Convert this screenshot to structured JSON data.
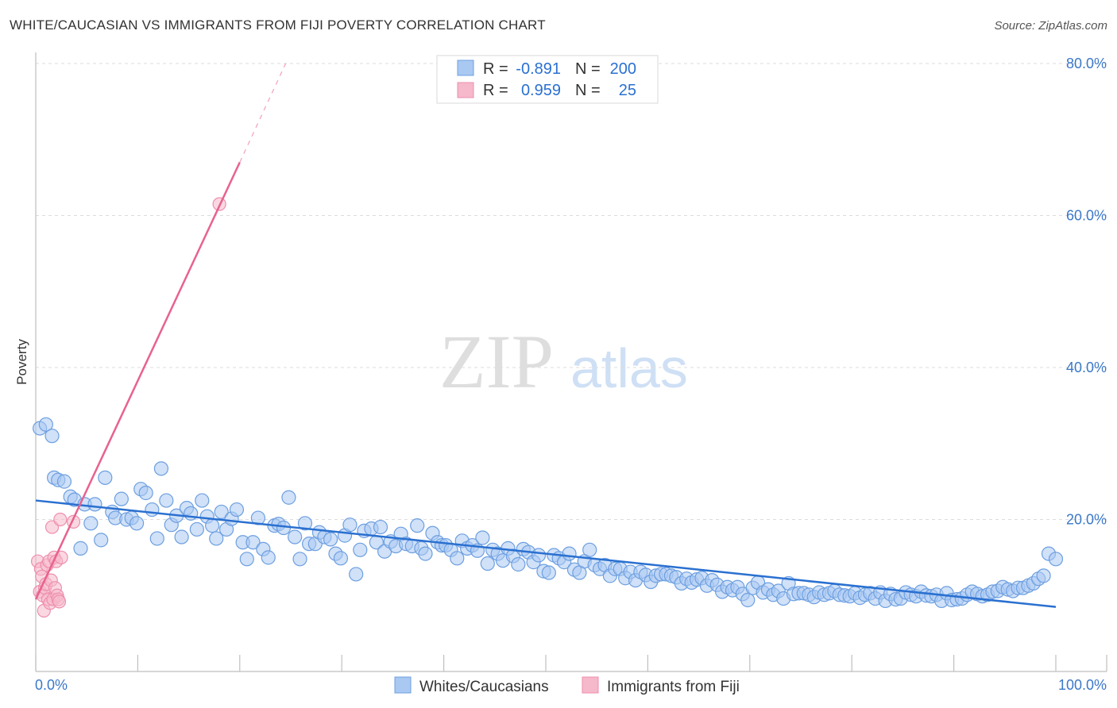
{
  "title": "WHITE/CAUCASIAN VS IMMIGRANTS FROM FIJI POVERTY CORRELATION CHART",
  "source": "Source: ZipAtlas.com",
  "watermark": {
    "zip": "ZIP",
    "atlas": "atlas"
  },
  "colors": {
    "blue_fill": "#a9c9f2",
    "blue_stroke": "#6d9fe0",
    "blue_line": "#2a70d0",
    "pink_fill": "#f6b8cb",
    "pink_stroke": "#ee8fad",
    "pink_line": "#e8628e",
    "axis_text": "#3a78c9",
    "grid": "#dcdcdc"
  },
  "stats_legend": [
    {
      "r_label": "R =",
      "r_value": "-0.891",
      "n_label": "N =",
      "n_value": "200"
    },
    {
      "r_label": "R =",
      "r_value": "0.959",
      "n_label": "N =",
      "n_value": "25"
    }
  ],
  "chart_data": {
    "type": "scatter",
    "xlabel": "",
    "ylabel": "Poverty",
    "xlim": [
      0,
      100
    ],
    "ylim": [
      0,
      80
    ],
    "x_tick_labels": [
      "0.0%",
      "100.0%"
    ],
    "y_ticks": [
      20,
      40,
      60,
      80
    ],
    "y_tick_labels": [
      "20.0%",
      "40.0%",
      "60.0%",
      "80.0%"
    ],
    "grid": true,
    "legend_position": "bottom",
    "series": [
      {
        "name": "Whites/Caucasians",
        "color": "#a9c9f2",
        "trend": {
          "x": [
            0,
            100
          ],
          "y": [
            22.5,
            8.5
          ]
        },
        "points": [
          [
            0.4,
            32
          ],
          [
            1.0,
            32.5
          ],
          [
            1.6,
            31
          ],
          [
            1.8,
            25.5
          ],
          [
            2.2,
            25.2
          ],
          [
            2.8,
            25
          ],
          [
            3.4,
            23
          ],
          [
            3.8,
            22.6
          ],
          [
            4.4,
            16.2
          ],
          [
            4.8,
            22
          ],
          [
            5.4,
            19.5
          ],
          [
            5.8,
            22
          ],
          [
            6.4,
            17.3
          ],
          [
            6.8,
            25.5
          ],
          [
            7.5,
            21
          ],
          [
            7.8,
            20.2
          ],
          [
            8.4,
            22.7
          ],
          [
            8.9,
            20
          ],
          [
            9.4,
            20.2
          ],
          [
            9.9,
            19.5
          ],
          [
            10.3,
            24
          ],
          [
            10.8,
            23.5
          ],
          [
            11.4,
            21.3
          ],
          [
            11.9,
            17.5
          ],
          [
            12.3,
            26.7
          ],
          [
            12.8,
            22.5
          ],
          [
            13.3,
            19.3
          ],
          [
            13.8,
            20.5
          ],
          [
            14.3,
            17.7
          ],
          [
            14.8,
            21.5
          ],
          [
            15.2,
            20.8
          ],
          [
            15.8,
            18.7
          ],
          [
            16.3,
            22.5
          ],
          [
            16.8,
            20.4
          ],
          [
            17.3,
            19.2
          ],
          [
            17.7,
            17.5
          ],
          [
            18.2,
            21
          ],
          [
            18.7,
            18.7
          ],
          [
            19.2,
            20.1
          ],
          [
            19.7,
            21.3
          ],
          [
            20.3,
            17
          ],
          [
            20.7,
            14.8
          ],
          [
            21.3,
            17
          ],
          [
            21.8,
            20.2
          ],
          [
            22.3,
            16.1
          ],
          [
            22.8,
            15
          ],
          [
            23.4,
            19.2
          ],
          [
            23.8,
            19.4
          ],
          [
            24.3,
            18.9
          ],
          [
            24.8,
            22.9
          ],
          [
            25.4,
            17.7
          ],
          [
            25.9,
            14.8
          ],
          [
            26.4,
            19.5
          ],
          [
            26.8,
            16.8
          ],
          [
            27.4,
            16.8
          ],
          [
            27.8,
            18.3
          ],
          [
            28.3,
            17.7
          ],
          [
            28.9,
            17.4
          ],
          [
            29.4,
            15.5
          ],
          [
            29.9,
            14.9
          ],
          [
            30.3,
            17.9
          ],
          [
            30.8,
            19.3
          ],
          [
            31.4,
            12.8
          ],
          [
            31.8,
            16
          ],
          [
            32.2,
            18.5
          ],
          [
            32.9,
            18.8
          ],
          [
            33.4,
            17
          ],
          [
            33.8,
            19
          ],
          [
            34.2,
            15.8
          ],
          [
            34.8,
            17.1
          ],
          [
            35.3,
            16.5
          ],
          [
            35.8,
            18.1
          ],
          [
            36.3,
            16.8
          ],
          [
            36.9,
            16.5
          ],
          [
            37.4,
            19.2
          ],
          [
            37.8,
            16.2
          ],
          [
            38.2,
            15.5
          ],
          [
            38.9,
            18.2
          ],
          [
            39.4,
            17
          ],
          [
            39.8,
            16.6
          ],
          [
            40.2,
            16.6
          ],
          [
            40.7,
            16
          ],
          [
            41.3,
            14.9
          ],
          [
            41.8,
            17.2
          ],
          [
            42.3,
            16.2
          ],
          [
            42.8,
            16.6
          ],
          [
            43.3,
            15.9
          ],
          [
            43.8,
            17.6
          ],
          [
            44.3,
            14.2
          ],
          [
            44.8,
            16
          ],
          [
            45.3,
            15.5
          ],
          [
            45.8,
            14.6
          ],
          [
            46.3,
            16.2
          ],
          [
            46.8,
            15.2
          ],
          [
            47.3,
            14.1
          ],
          [
            47.8,
            16.1
          ],
          [
            48.3,
            15.7
          ],
          [
            48.8,
            14.4
          ],
          [
            49.3,
            15.3
          ],
          [
            49.8,
            13.2
          ],
          [
            50.3,
            13
          ],
          [
            50.8,
            15.3
          ],
          [
            51.3,
            14.9
          ],
          [
            51.8,
            14.4
          ],
          [
            52.3,
            15.5
          ],
          [
            52.8,
            13.4
          ],
          [
            53.3,
            13
          ],
          [
            53.8,
            14.5
          ],
          [
            54.3,
            16
          ],
          [
            54.8,
            14
          ],
          [
            55.3,
            13.5
          ],
          [
            55.8,
            14
          ],
          [
            56.3,
            12.6
          ],
          [
            56.8,
            13.5
          ],
          [
            57.3,
            13.5
          ],
          [
            57.8,
            12.3
          ],
          [
            58.3,
            13.1
          ],
          [
            58.8,
            12
          ],
          [
            59.3,
            13.1
          ],
          [
            59.8,
            12.7
          ],
          [
            60.3,
            11.8
          ],
          [
            60.8,
            12.6
          ],
          [
            61.3,
            12.8
          ],
          [
            61.8,
            12.8
          ],
          [
            62.3,
            12.6
          ],
          [
            62.8,
            12.4
          ],
          [
            63.3,
            11.6
          ],
          [
            63.8,
            12.2
          ],
          [
            64.3,
            11.7
          ],
          [
            64.8,
            12.1
          ],
          [
            65.3,
            12.3
          ],
          [
            65.8,
            11.3
          ],
          [
            66.3,
            12
          ],
          [
            66.8,
            11.4
          ],
          [
            67.3,
            10.5
          ],
          [
            67.8,
            11.1
          ],
          [
            68.3,
            10.7
          ],
          [
            68.8,
            11.1
          ],
          [
            69.3,
            10.2
          ],
          [
            69.8,
            9.4
          ],
          [
            70.3,
            11
          ],
          [
            70.8,
            11.7
          ],
          [
            71.3,
            10.4
          ],
          [
            71.8,
            10.8
          ],
          [
            72.3,
            10.1
          ],
          [
            72.8,
            10.6
          ],
          [
            73.3,
            9.6
          ],
          [
            73.8,
            11.6
          ],
          [
            74.3,
            10.2
          ],
          [
            74.8,
            10.3
          ],
          [
            75.3,
            10.3
          ],
          [
            75.8,
            10.1
          ],
          [
            76.3,
            9.8
          ],
          [
            76.8,
            10.4
          ],
          [
            77.3,
            10.1
          ],
          [
            77.8,
            10.3
          ],
          [
            78.3,
            10.6
          ],
          [
            78.8,
            10.1
          ],
          [
            79.3,
            10
          ],
          [
            79.8,
            9.9
          ],
          [
            80.3,
            10.3
          ],
          [
            80.8,
            9.7
          ],
          [
            81.3,
            10.1
          ],
          [
            81.8,
            10.3
          ],
          [
            82.3,
            9.6
          ],
          [
            82.8,
            10.4
          ],
          [
            83.3,
            9.3
          ],
          [
            83.8,
            10.2
          ],
          [
            84.3,
            9.5
          ],
          [
            84.8,
            9.6
          ],
          [
            85.3,
            10.4
          ],
          [
            85.8,
            10.1
          ],
          [
            86.3,
            9.9
          ],
          [
            86.8,
            10.5
          ],
          [
            87.3,
            10
          ],
          [
            87.8,
            9.9
          ],
          [
            88.3,
            10.1
          ],
          [
            88.8,
            9.3
          ],
          [
            89.3,
            10.3
          ],
          [
            89.8,
            9.4
          ],
          [
            90.3,
            9.5
          ],
          [
            90.8,
            9.6
          ],
          [
            91.3,
            10.1
          ],
          [
            91.8,
            10.5
          ],
          [
            92.3,
            10.2
          ],
          [
            92.8,
            9.9
          ],
          [
            93.3,
            10.1
          ],
          [
            93.8,
            10.5
          ],
          [
            94.3,
            10.6
          ],
          [
            94.8,
            11.1
          ],
          [
            95.3,
            10.8
          ],
          [
            95.8,
            10.6
          ],
          [
            96.3,
            11
          ],
          [
            96.8,
            11
          ],
          [
            97.3,
            11.3
          ],
          [
            97.8,
            11.6
          ],
          [
            98.3,
            12.2
          ],
          [
            98.8,
            12.6
          ],
          [
            99.3,
            15.5
          ],
          [
            100.0,
            14.8
          ]
        ]
      },
      {
        "name": "Immigrants from Fiji",
        "color": "#f6b8cb",
        "trend": {
          "x": [
            0,
            20
          ],
          "y": [
            9.5,
            67
          ],
          "dashed_to": {
            "x": 24.5,
            "y": 80
          }
        },
        "points": [
          [
            0.2,
            14.5
          ],
          [
            0.4,
            10.5
          ],
          [
            0.5,
            13.5
          ],
          [
            0.6,
            12.5
          ],
          [
            0.7,
            10
          ],
          [
            0.8,
            8
          ],
          [
            0.9,
            11
          ],
          [
            1.0,
            11.5
          ],
          [
            1.1,
            14
          ],
          [
            1.2,
            9.5
          ],
          [
            1.3,
            14.5
          ],
          [
            1.4,
            9
          ],
          [
            1.5,
            12
          ],
          [
            1.6,
            19
          ],
          [
            1.7,
            9.5
          ],
          [
            1.8,
            15
          ],
          [
            1.9,
            11
          ],
          [
            2.0,
            14.5
          ],
          [
            2.1,
            10
          ],
          [
            2.2,
            9.5
          ],
          [
            2.3,
            9.2
          ],
          [
            2.4,
            20
          ],
          [
            2.5,
            15
          ],
          [
            3.7,
            19.7
          ],
          [
            18.0,
            61.5
          ]
        ]
      }
    ]
  }
}
